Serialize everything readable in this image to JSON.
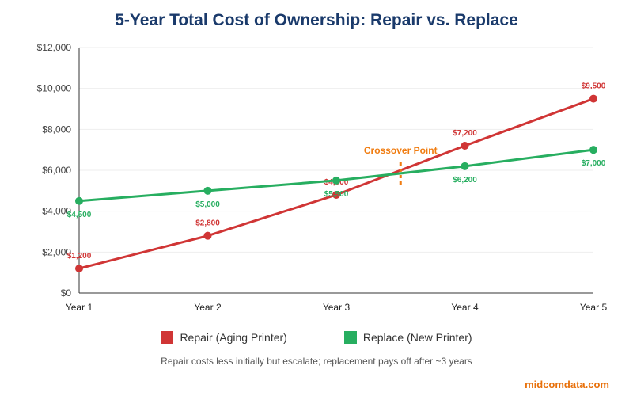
{
  "chart_data": {
    "type": "line",
    "title": "5-Year Total Cost of Ownership: Repair vs. Replace",
    "categories": [
      "Year 1",
      "Year 2",
      "Year 3",
      "Year 4",
      "Year 5"
    ],
    "ylim": [
      0,
      12000
    ],
    "yticks": [
      "$0",
      "$2,000",
      "$4,000",
      "$6,000",
      "$8,000",
      "$10,000",
      "$12,000"
    ],
    "grid": true,
    "legend_position": "bottom",
    "series": [
      {
        "name": "Repair (Aging Printer)",
        "color": "#d03535",
        "values": [
          1200,
          2800,
          4800,
          7200,
          9500
        ],
        "labels": [
          "$1,200",
          "$2,800",
          "$4,800",
          "$7,200",
          "$9,500"
        ]
      },
      {
        "name": "Replace (New Printer)",
        "color": "#27ae60",
        "values": [
          4500,
          5000,
          5500,
          6200,
          7000
        ],
        "labels": [
          "$4,500",
          "$5,000",
          "$5,500",
          "$6,200",
          "$7,000"
        ]
      }
    ],
    "annotation": {
      "text": "Crossover Point",
      "x": 3.5,
      "color": "#f07c10"
    }
  },
  "note": "Repair costs less initially but escalate; replacement pays off after ~3 years",
  "brand": "midcomdata.com"
}
